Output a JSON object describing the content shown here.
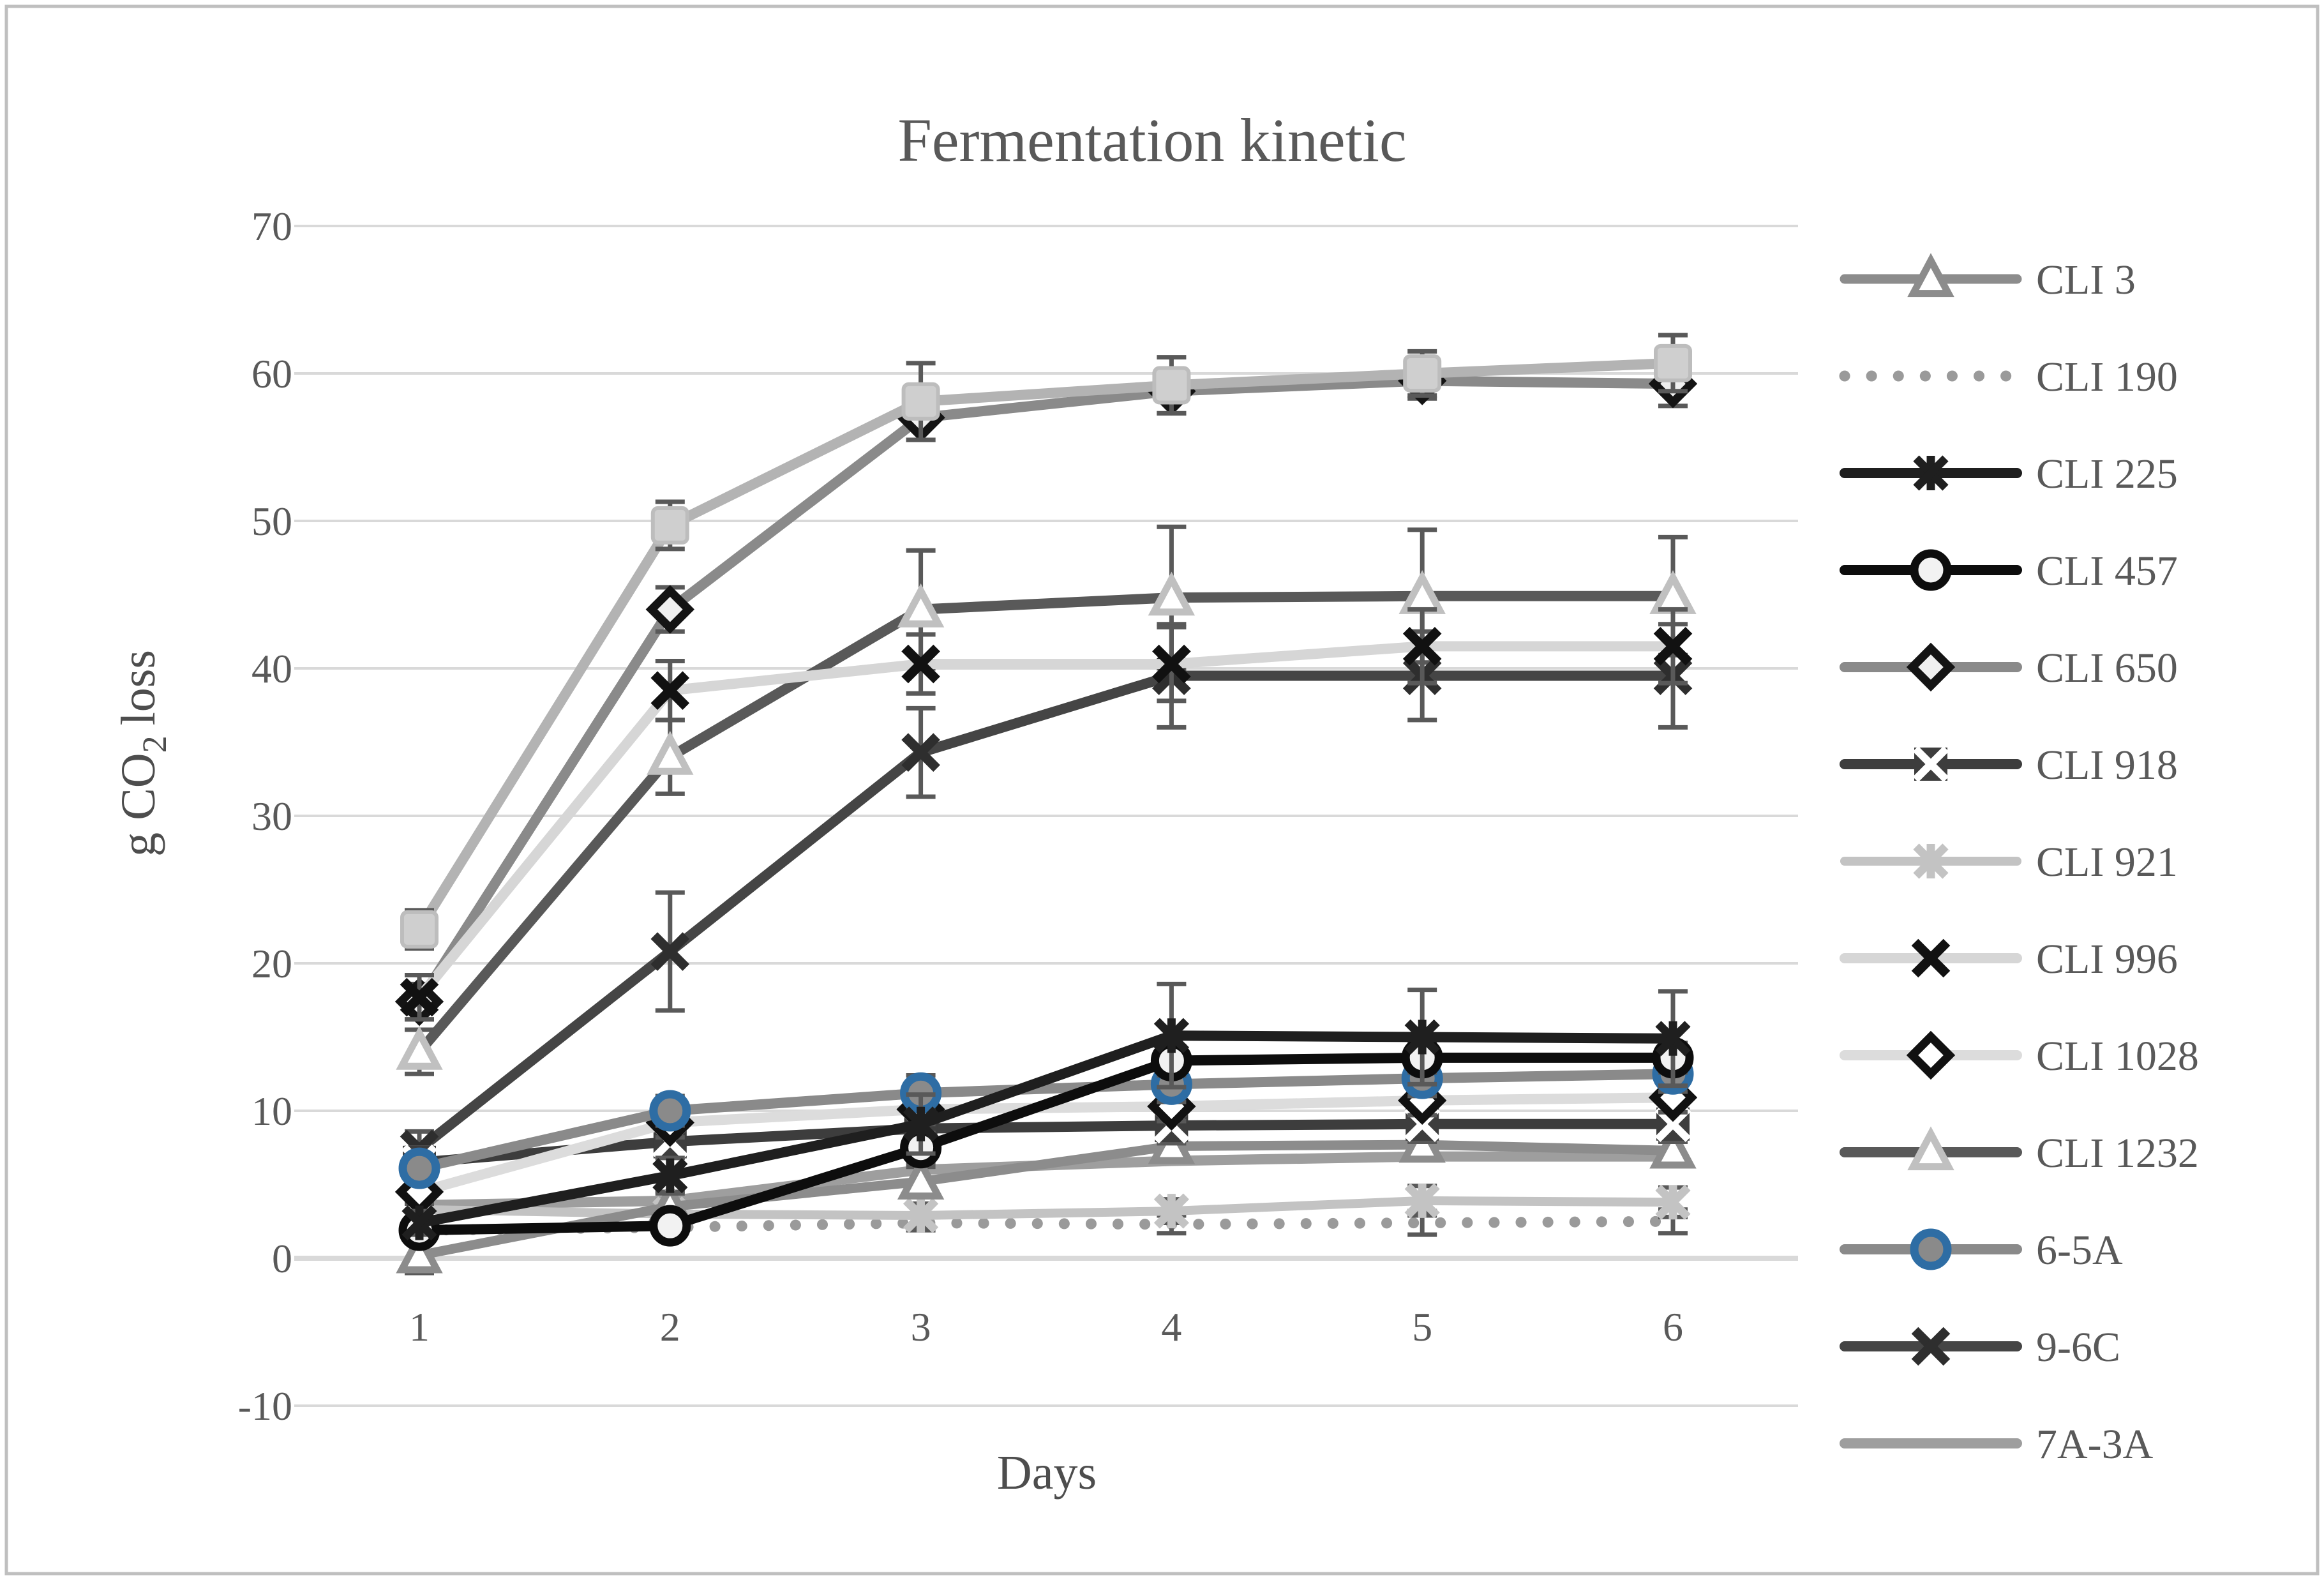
{
  "figure": {
    "title": "Fermentation kinetic",
    "xlabel": "Days",
    "ylabel_parts": {
      "prefix": "g CO",
      "sub": "2",
      "suffix": "loss"
    },
    "background_color": "#ffffff",
    "frame_border_color": "#bfbfbf",
    "grid_color": "#d9d9d9",
    "error_bar_color": "#595959",
    "text_color": "#595959"
  },
  "chart_data": {
    "type": "line",
    "title": "Fermentation kinetic",
    "xlabel": "Days",
    "ylabel": "g CO2 loss",
    "x": [
      1,
      2,
      3,
      4,
      5,
      6
    ],
    "xtick_labels": [
      "1",
      "2",
      "3",
      "4",
      "5",
      "6"
    ],
    "ylim": [
      -10,
      70
    ],
    "yticks": [
      70,
      60,
      50,
      40,
      30,
      20,
      10,
      0,
      -10
    ],
    "grid": true,
    "legend_position": "right",
    "series": [
      {
        "name": "CLI 3",
        "in_legend": true,
        "z": 4,
        "line": "#8c8c8c",
        "width": 15,
        "dash": "solid",
        "marker": "triangle",
        "mfill": "#ffffff",
        "medge": "#8c8c8c",
        "values": [
          0.2,
          3.5,
          5.2,
          7.6,
          7.7,
          7.3
        ],
        "err": [
          1.2,
          1.0,
          1.0,
          1.0,
          1.0,
          1.0
        ]
      },
      {
        "name": "CLI 190",
        "in_legend": true,
        "z": 1,
        "line": "#9a9a9a",
        "width": 17,
        "dash": "dotted",
        "marker": "none",
        "mfill": "none",
        "medge": "none",
        "values": [
          1.9,
          2.1,
          2.4,
          2.3,
          2.4,
          2.5
        ],
        "err": [
          0.5,
          0.5,
          0.5,
          0.6,
          0.8,
          0.8
        ]
      },
      {
        "name": "CLI 225",
        "in_legend": true,
        "z": 11,
        "line": "#1f1f1f",
        "width": 16,
        "dash": "solid",
        "marker": "asterisk",
        "mfill": "none",
        "medge": "#1f1f1f",
        "values": [
          2.4,
          5.6,
          9.1,
          15.1,
          15.0,
          14.9
        ],
        "err": [
          0.8,
          1.2,
          2.0,
          3.5,
          3.2,
          3.2
        ]
      },
      {
        "name": "CLI 457",
        "in_legend": true,
        "z": 10,
        "line": "#0d0d0d",
        "width": 16,
        "dash": "solid",
        "marker": "circle",
        "mfill": "#f2f2f2",
        "medge": "#0d0d0d",
        "values": [
          1.9,
          2.2,
          7.5,
          13.4,
          13.6,
          13.6
        ],
        "err": [
          0.6,
          0.6,
          1.0,
          1.0,
          1.0,
          1.0
        ]
      },
      {
        "name": "CLI 650",
        "in_legend": true,
        "z": 12,
        "line": "#8a8a8a",
        "width": 16,
        "dash": "solid",
        "marker": "diamond",
        "mfill": "#f0f0f0",
        "medge": "#141414",
        "values": [
          17.4,
          44.0,
          57.0,
          58.8,
          59.5,
          59.3
        ],
        "err": [
          1.2,
          1.5,
          1.5,
          1.5,
          1.2,
          1.5
        ]
      },
      {
        "name": "CLI 918",
        "in_legend": true,
        "z": 7,
        "line": "#3d3d3d",
        "width": 16,
        "dash": "solid",
        "marker": "squarex",
        "mfill": "#3d3d3d",
        "medge": "#ffffff",
        "values": [
          6.5,
          7.9,
          8.8,
          9.0,
          9.1,
          9.1
        ],
        "err": [
          1.0,
          1.0,
          1.0,
          1.2,
          1.2,
          1.2
        ]
      },
      {
        "name": "CLI 921",
        "in_legend": true,
        "z": 3,
        "line": "#c3c3c3",
        "width": 14,
        "dash": "solid",
        "marker": "asterisk",
        "mfill": "none",
        "medge": "#c3c3c3",
        "values": [
          3.3,
          3.0,
          2.9,
          3.2,
          3.9,
          3.8
        ],
        "err": [
          0.8,
          0.8,
          0.8,
          0.8,
          1.0,
          1.0
        ]
      },
      {
        "name": "CLI 996",
        "in_legend": true,
        "z": 13,
        "line": "#d6d6d6",
        "width": 16,
        "dash": "solid",
        "marker": "x",
        "mfill": "none",
        "medge": "#111111",
        "values": [
          17.7,
          38.5,
          40.3,
          40.3,
          41.5,
          41.5
        ],
        "err": [
          1.5,
          2.0,
          2.0,
          2.5,
          2.5,
          2.5
        ]
      },
      {
        "name": "CLI 1028",
        "in_legend": true,
        "z": 8,
        "line": "#dcdcdc",
        "width": 16,
        "dash": "solid",
        "marker": "diamond",
        "mfill": "#ffffff",
        "medge": "#111111",
        "values": [
          4.5,
          9.2,
          10.1,
          10.3,
          10.7,
          10.9
        ],
        "err": [
          0.8,
          1.0,
          1.0,
          1.0,
          1.0,
          1.0
        ]
      },
      {
        "name": "CLI 1232",
        "in_legend": true,
        "z": 5,
        "line": "#595959",
        "width": 16,
        "dash": "solid",
        "marker": "triangle",
        "mfill": "#ffffff",
        "medge": "#c0c0c0",
        "values": [
          14.0,
          34.0,
          44.0,
          44.8,
          44.9,
          44.9
        ],
        "err": [
          1.5,
          2.5,
          4.0,
          4.8,
          4.5,
          4.0
        ]
      },
      {
        "name": "6-5A",
        "in_legend": true,
        "z": 9,
        "line": "#8a8a8a",
        "width": 16,
        "dash": "solid",
        "marker": "circle",
        "mfill": "#8a8a8a",
        "medge": "#2e6da4",
        "values": [
          6.1,
          10.0,
          11.2,
          11.8,
          12.2,
          12.5
        ],
        "err": [
          0.8,
          1.0,
          1.2,
          1.2,
          1.2,
          1.2
        ]
      },
      {
        "name": "9-6C",
        "in_legend": true,
        "z": 6,
        "line": "#454545",
        "width": 16,
        "dash": "solid",
        "marker": "x",
        "mfill": "none",
        "medge": "#2e2e2e",
        "values": [
          7.4,
          20.8,
          34.3,
          39.5,
          39.5,
          39.5
        ],
        "err": [
          1.2,
          4.0,
          3.0,
          3.5,
          3.0,
          3.5
        ]
      },
      {
        "name": "7A-3A",
        "in_legend": true,
        "z": 2,
        "line": "#9e9e9e",
        "width": 16,
        "dash": "solid",
        "marker": "none",
        "mfill": "none",
        "medge": "none",
        "values": [
          3.6,
          3.9,
          6.0,
          6.6,
          6.9,
          6.9
        ],
        "err": [
          0,
          0,
          0,
          0,
          0,
          0
        ]
      },
      {
        "name": "unlabeled square series",
        "in_legend": false,
        "z": 14,
        "line": "#b3b3b3",
        "width": 16,
        "dash": "solid",
        "marker": "square",
        "mfill": "#cfcfcf",
        "medge": "#bdbdbd",
        "values": [
          22.3,
          49.7,
          58.1,
          59.2,
          60.0,
          60.7
        ],
        "err": [
          1.3,
          1.6,
          2.6,
          1.9,
          1.5,
          1.9
        ]
      }
    ]
  },
  "layout_text": {
    "legend_labels": [
      "CLI 3",
      "CLI 190",
      "CLI 225",
      "CLI 457",
      "CLI 650",
      "CLI 918",
      "CLI 921",
      "CLI 996",
      "CLI 1028",
      "CLI 1232",
      "6-5A",
      "9-6C",
      "7A-3A"
    ]
  }
}
